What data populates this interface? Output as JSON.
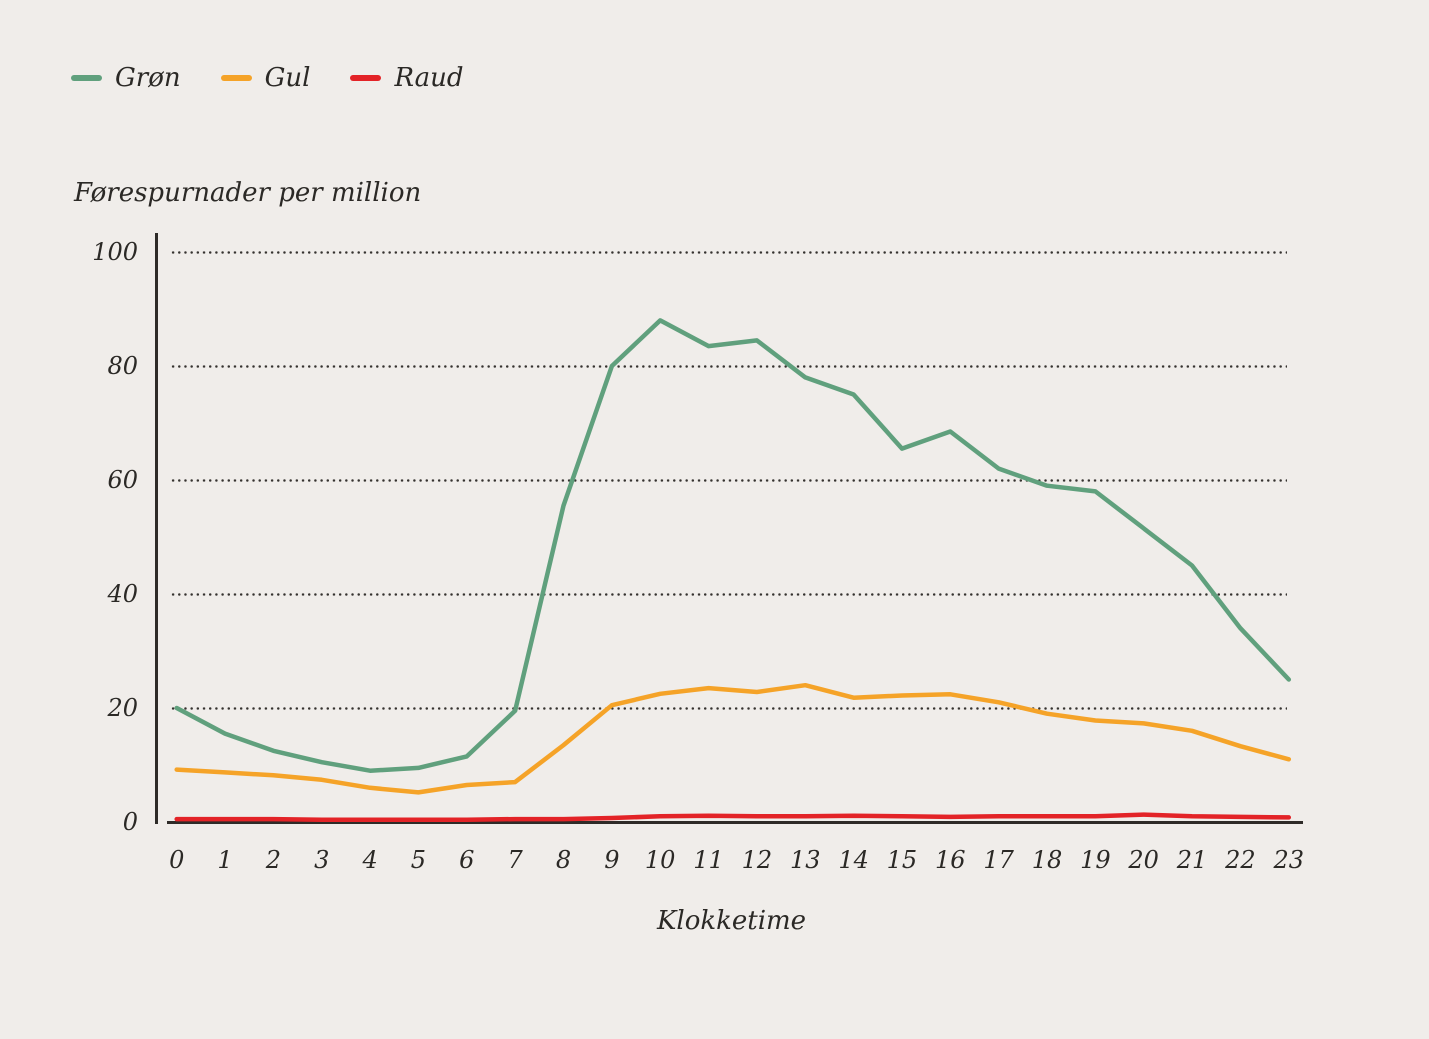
{
  "legend": {
    "items": [
      {
        "label": "Grøn",
        "color": "#60a07d"
      },
      {
        "label": "Gul",
        "color": "#f5a328"
      },
      {
        "label": "Raud",
        "color": "#e32327"
      }
    ]
  },
  "y_axis": {
    "title": "Førespurnader per million",
    "ticks": [
      100,
      80,
      60,
      40,
      20,
      0
    ]
  },
  "x_axis": {
    "title": "Klokketime",
    "ticks": [
      0,
      1,
      2,
      3,
      4,
      5,
      6,
      7,
      8,
      9,
      10,
      11,
      12,
      13,
      14,
      15,
      16,
      17,
      18,
      19,
      20,
      21,
      22,
      23
    ]
  },
  "chart_data": {
    "type": "line",
    "title": "",
    "xlabel": "Klokketime",
    "ylabel": "Førespurnader per million",
    "x": [
      0,
      1,
      2,
      3,
      4,
      5,
      6,
      7,
      8,
      9,
      10,
      11,
      12,
      13,
      14,
      15,
      16,
      17,
      18,
      19,
      20,
      21,
      22,
      23
    ],
    "series": [
      {
        "name": "Grøn",
        "color": "#60a07d",
        "values": [
          20,
          15.5,
          12.5,
          10.5,
          9,
          9.5,
          11.5,
          19.5,
          55.5,
          80,
          88,
          83.5,
          84.5,
          78,
          75,
          65.5,
          68.5,
          62,
          59,
          58,
          51.5,
          45,
          34,
          25
        ]
      },
      {
        "name": "Gul",
        "color": "#f5a328",
        "values": [
          9.2,
          8.7,
          8.2,
          7.4,
          6,
          5.2,
          6.5,
          7,
          13.5,
          20.5,
          22.5,
          23.5,
          22.8,
          24,
          21.8,
          22.2,
          22.4,
          21,
          19,
          17.8,
          17.3,
          16,
          13.3,
          11
        ]
      },
      {
        "name": "Raud",
        "color": "#e32327",
        "values": [
          0.5,
          0.5,
          0.5,
          0.4,
          0.4,
          0.4,
          0.4,
          0.5,
          0.5,
          0.7,
          1,
          1.1,
          1,
          1,
          1.1,
          1,
          0.9,
          1,
          1,
          1,
          1.3,
          1,
          0.9,
          0.8
        ]
      }
    ],
    "ylim": [
      0,
      100
    ],
    "y_gridlines": [
      100,
      80,
      60,
      40,
      20
    ],
    "grid": "horizontal-dotted",
    "legend_position": "top-left",
    "background_color": "#f0edea"
  }
}
